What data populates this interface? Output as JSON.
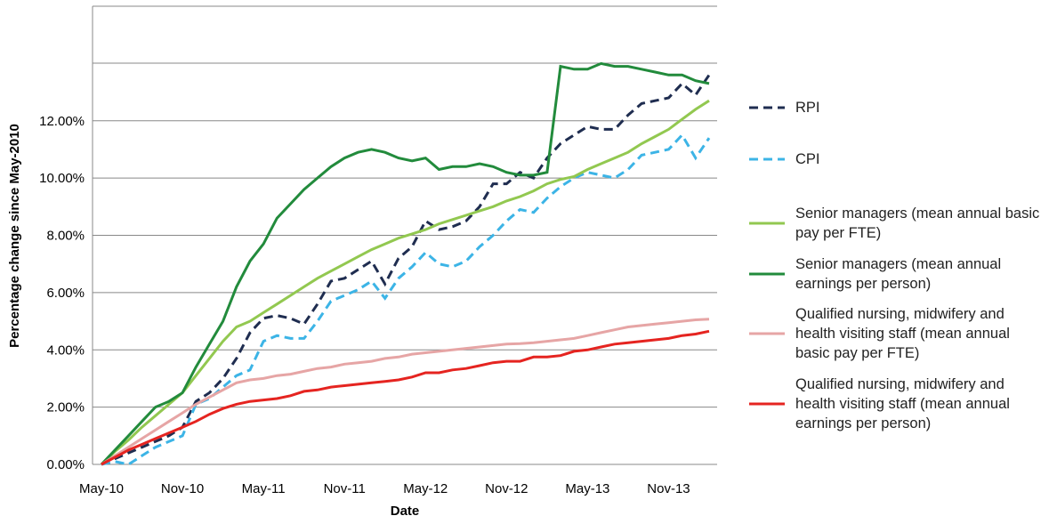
{
  "chart_data": {
    "type": "line",
    "x_label": "Date",
    "y_label": "Percentage change since May-2010",
    "categories": [
      "May-10",
      null,
      null,
      null,
      null,
      null,
      "Nov-10",
      null,
      null,
      null,
      null,
      null,
      "May-11",
      null,
      null,
      null,
      null,
      null,
      "Nov-11",
      null,
      null,
      null,
      null,
      null,
      "May-12",
      null,
      null,
      null,
      null,
      null,
      "Nov-12",
      null,
      null,
      null,
      null,
      null,
      "May-13",
      null,
      null,
      null,
      null,
      null,
      "Nov-13",
      null,
      null,
      null
    ],
    "ylim": [
      0,
      16
    ],
    "yticks": [
      {
        "value": 0,
        "label": "0.00%"
      },
      {
        "value": 2,
        "label": "2.00%"
      },
      {
        "value": 4,
        "label": "4.00%"
      },
      {
        "value": 6,
        "label": "6.00%"
      },
      {
        "value": 8,
        "label": "8.00%"
      },
      {
        "value": 10,
        "label": "10.00%"
      },
      {
        "value": 12,
        "label": "12.00%"
      }
    ],
    "grid": true,
    "legend": "right",
    "series": [
      {
        "name": "RPI",
        "color": "#1f2d50",
        "dashed": true,
        "values": [
          0,
          0.2,
          0.4,
          0.6,
          0.8,
          1.0,
          1.3,
          2.2,
          2.5,
          3.0,
          3.7,
          4.6,
          5.1,
          5.2,
          5.1,
          4.9,
          5.6,
          6.4,
          6.5,
          6.8,
          7.1,
          6.3,
          7.2,
          7.6,
          8.5,
          8.2,
          8.3,
          8.5,
          9.0,
          9.8,
          9.8,
          10.2,
          10.0,
          10.7,
          11.2,
          11.5,
          11.8,
          11.7,
          11.7,
          12.2,
          12.6,
          12.7,
          12.8,
          13.3,
          12.9,
          13.6
        ]
      },
      {
        "name": "CPI",
        "color": "#3cb4e6",
        "dashed": true,
        "values": [
          0,
          0.1,
          0,
          0.3,
          0.6,
          0.8,
          1.0,
          2.1,
          2.3,
          2.7,
          3.1,
          3.3,
          4.3,
          4.5,
          4.4,
          4.4,
          5.0,
          5.7,
          5.9,
          6.1,
          6.4,
          5.8,
          6.5,
          6.9,
          7.4,
          7.0,
          6.9,
          7.1,
          7.6,
          8.0,
          8.5,
          8.9,
          8.8,
          9.3,
          9.7,
          10.0,
          10.2,
          10.1,
          10.0,
          10.3,
          10.8,
          10.9,
          11.0,
          11.5,
          10.7,
          11.4
        ]
      },
      {
        "name": "Senior managers (mean annual basic pay per FTE)",
        "color": "#92c850",
        "dashed": false,
        "values": [
          0,
          0.45,
          0.85,
          1.3,
          1.7,
          2.1,
          2.5,
          3.1,
          3.7,
          4.3,
          4.8,
          5.0,
          5.3,
          5.6,
          5.9,
          6.2,
          6.5,
          6.75,
          7.0,
          7.25,
          7.5,
          7.7,
          7.9,
          8.05,
          8.2,
          8.4,
          8.55,
          8.7,
          8.85,
          9.0,
          9.2,
          9.35,
          9.55,
          9.8,
          9.95,
          10.05,
          10.3,
          10.5,
          10.7,
          10.9,
          11.2,
          11.45,
          11.7,
          12.05,
          12.4,
          12.7
        ]
      },
      {
        "name": "Senior managers (mean annual earnings per person)",
        "color": "#228b3c",
        "dashed": false,
        "values": [
          0,
          0.5,
          1.0,
          1.5,
          2.0,
          2.2,
          2.5,
          3.4,
          4.2,
          5.0,
          6.2,
          7.1,
          7.7,
          8.6,
          9.1,
          9.6,
          10.0,
          10.4,
          10.7,
          10.9,
          11.0,
          10.9,
          10.7,
          10.6,
          10.7,
          10.3,
          10.4,
          10.4,
          10.5,
          10.4,
          10.2,
          10.1,
          10.1,
          10.2,
          13.9,
          13.8,
          13.8,
          14.0,
          13.9,
          13.9,
          13.8,
          13.7,
          13.6,
          13.6,
          13.4,
          13.3
        ]
      },
      {
        "name": "Qualified nursing, midwifery and health visiting staff (mean annual basic pay per FTE)",
        "color": "#e6a5a5",
        "dashed": false,
        "values": [
          0,
          0.3,
          0.6,
          0.9,
          1.2,
          1.5,
          1.8,
          2.1,
          2.35,
          2.6,
          2.85,
          2.95,
          3.0,
          3.1,
          3.15,
          3.25,
          3.35,
          3.4,
          3.5,
          3.55,
          3.6,
          3.7,
          3.75,
          3.85,
          3.9,
          3.95,
          4.0,
          4.05,
          4.1,
          4.15,
          4.2,
          4.22,
          4.25,
          4.3,
          4.35,
          4.4,
          4.5,
          4.6,
          4.7,
          4.8,
          4.85,
          4.9,
          4.95,
          5.0,
          5.05,
          5.07
        ]
      },
      {
        "name": "Qualified nursing, midwifery and health visiting staff (mean annual earnings per person)",
        "color": "#e52420",
        "dashed": false,
        "values": [
          0,
          0.25,
          0.5,
          0.7,
          0.9,
          1.1,
          1.3,
          1.5,
          1.75,
          1.95,
          2.1,
          2.2,
          2.25,
          2.3,
          2.4,
          2.55,
          2.6,
          2.7,
          2.75,
          2.8,
          2.85,
          2.9,
          2.95,
          3.05,
          3.2,
          3.2,
          3.3,
          3.35,
          3.45,
          3.55,
          3.6,
          3.6,
          3.75,
          3.75,
          3.8,
          3.95,
          4.0,
          4.1,
          4.2,
          4.25,
          4.3,
          4.35,
          4.4,
          4.5,
          4.55,
          4.65
        ]
      }
    ]
  }
}
